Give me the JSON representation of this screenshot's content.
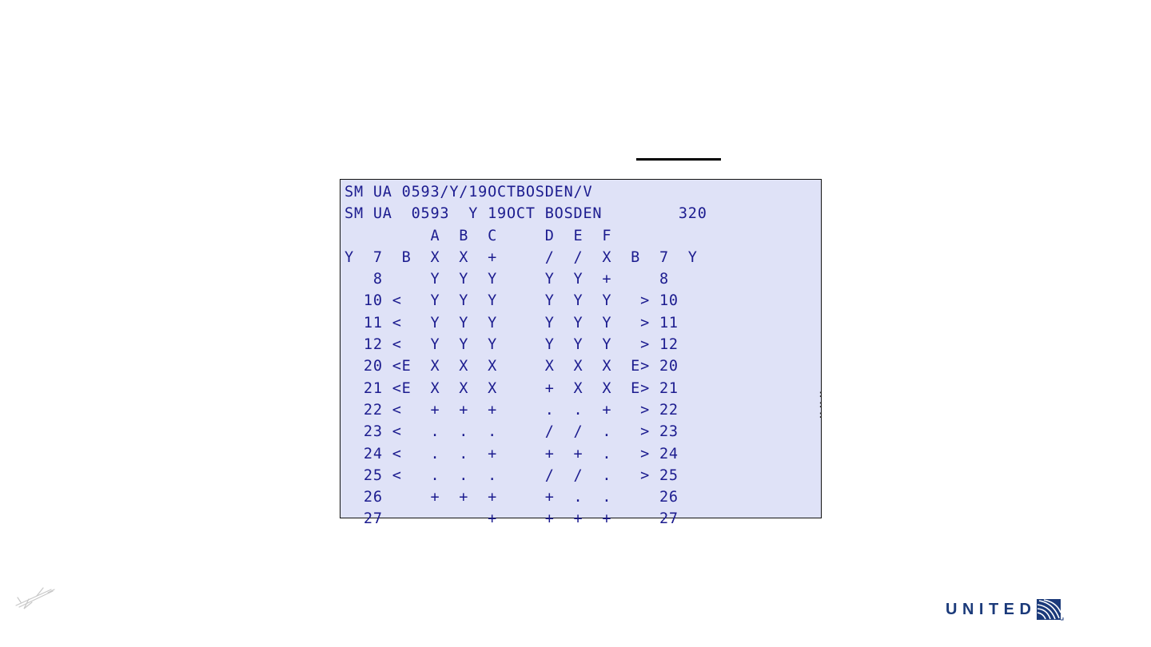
{
  "terminal": {
    "lines": [
      "SM UA 0593/Y/19OCTBOSDEN/V",
      "SM UA  0593  Y 19OCT BOSDEN        320",
      "         A  B  C     D  E  F",
      "Y  7  B  X  X  +     /  /  X  B  7  Y",
      "   8     Y  Y  Y     Y  Y  +     8",
      "  10 <   Y  Y  Y     Y  Y  Y   > 10",
      "  11 <   Y  Y  Y     Y  Y  Y   > 11",
      "  12 <   Y  Y  Y     Y  Y  Y   > 12",
      "  20 <E  X  X  X     X  X  X  E> 20",
      "  21 <E  X  X  X     +  X  X  E> 21",
      "  22 <   +  +  +     .  .  +   > 22",
      "  23 <   .  .  .     /  /  .   > 23",
      "  24 <   .  .  +     +  +  .   > 24",
      "  25 <   .  .  .     /  /  .   > 25",
      "  26     +  +  +     +  .  .     26",
      "  27           +     +  +  +     27"
    ]
  },
  "brand": {
    "name": "UNITED",
    "color": "#1b3a7a"
  },
  "icons": {
    "plane": "plane-watermark-icon",
    "globe": "united-globe-icon"
  }
}
